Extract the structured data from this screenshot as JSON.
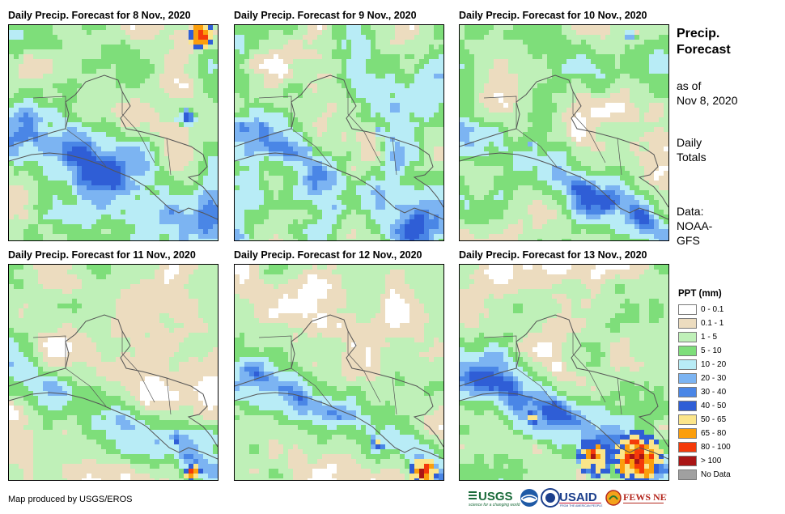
{
  "panels": [
    {
      "title": "Daily Precip. Forecast for 8 Nov., 2020"
    },
    {
      "title": "Daily Precip. Forecast for 9 Nov., 2020"
    },
    {
      "title": "Daily Precip. Forecast for 10 Nov., 2020"
    },
    {
      "title": "Daily Precip. Forecast for 11 Nov., 2020"
    },
    {
      "title": "Daily Precip. Forecast for 12 Nov., 2020"
    },
    {
      "title": "Daily Precip. Forecast for 13 Nov., 2020"
    }
  ],
  "side": {
    "title_line1": "Precip.",
    "title_line2": "Forecast",
    "asof_line1": "as of",
    "asof_line2": "Nov 8, 2020",
    "totals_line1": "Daily",
    "totals_line2": "Totals",
    "data_line1": "Data:",
    "data_line2": "NOAA-",
    "data_line3": "GFS"
  },
  "legend": {
    "title": "PPT (mm)",
    "items": [
      {
        "label": "0 - 0.1",
        "color": "#ffffff"
      },
      {
        "label": "0.1 - 1",
        "color": "#ecdcbf"
      },
      {
        "label": "1 - 5",
        "color": "#bff0b8"
      },
      {
        "label": "5 - 10",
        "color": "#7ede7a"
      },
      {
        "label": "10 - 20",
        "color": "#b8ecf6"
      },
      {
        "label": "20 - 30",
        "color": "#7cb4f2"
      },
      {
        "label": "30 - 40",
        "color": "#4a86e6"
      },
      {
        "label": "40 - 50",
        "color": "#2f5ed6"
      },
      {
        "label": "50 - 65",
        "color": "#fbe58a"
      },
      {
        "label": "65 - 80",
        "color": "#fb9e0c"
      },
      {
        "label": "80 - 100",
        "color": "#f43a0a"
      },
      {
        "label": "> 100",
        "color": "#aa1515"
      },
      {
        "label": "No Data",
        "color": "#a0a0a0"
      }
    ]
  },
  "credit": "Map produced by USGS/EROS",
  "logos": {
    "usgs": "USGS",
    "usgs_tagline": "science for a changing world",
    "noaa": "NOAA",
    "usaid": "USAID",
    "usaid_tagline": "FROM THE AMERICAN PEOPLE",
    "fewsnet": "FEWS NET"
  },
  "colors": {
    "land_outline": "#555555",
    "frame": "#000000"
  }
}
